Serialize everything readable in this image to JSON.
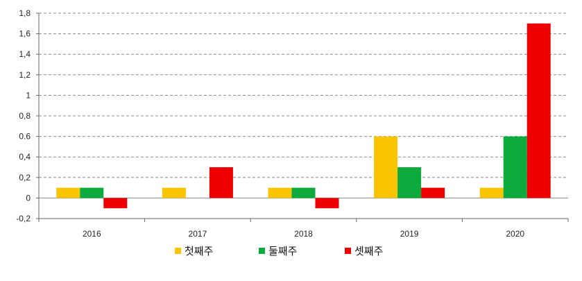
{
  "chart_data": {
    "type": "bar",
    "categories": [
      "2016",
      "2017",
      "2018",
      "2019",
      "2020"
    ],
    "series": [
      {
        "name": "첫째주",
        "color": "#F9C400",
        "values": [
          0.1,
          0.1,
          0.1,
          0.6,
          0.1
        ]
      },
      {
        "name": "둘째주",
        "color": "#0DAA3E",
        "values": [
          0.1,
          0,
          0.1,
          0.3,
          0.6
        ]
      },
      {
        "name": "셋째주",
        "color": "#EE0000",
        "values": [
          -0.1,
          0.3,
          -0.1,
          0.1,
          1.7
        ]
      }
    ],
    "yticks": [
      "-0,2",
      "0",
      "0,2",
      "0,4",
      "0.6",
      "0,8",
      "1",
      "1,2",
      "1,4",
      "1,6",
      "1,8"
    ],
    "ylim": [
      -0.2,
      1.8
    ],
    "grid": true,
    "legend": "bottom"
  }
}
